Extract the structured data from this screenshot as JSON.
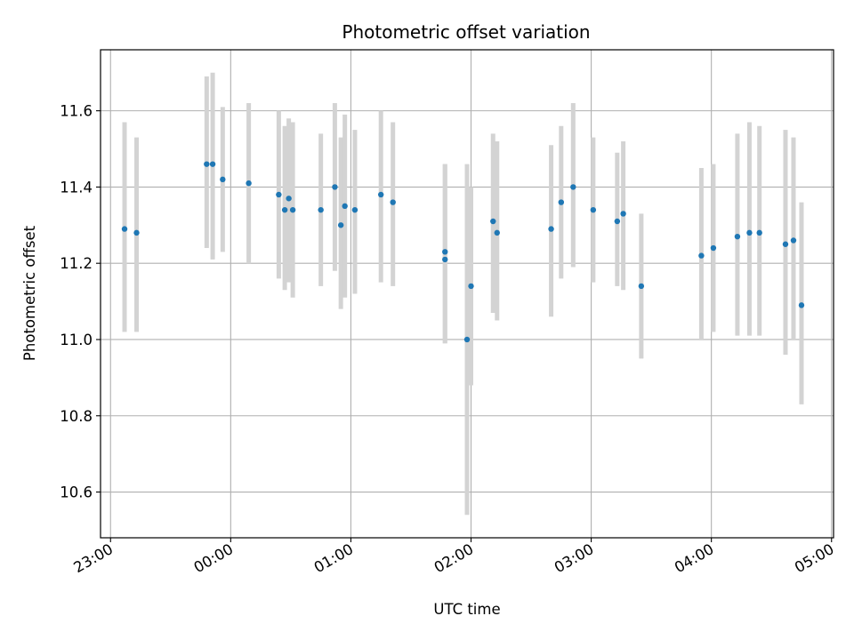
{
  "chart_data": {
    "type": "scatter",
    "title": "Photometric offset variation",
    "xlabel": "UTC time",
    "ylabel": "Photometric offset",
    "x_unit": "UTC time (HH:MM), 23:00 on first night through 05:00 next morning",
    "xlim": [
      "22:55",
      "05:01"
    ],
    "ylim": [
      10.48,
      11.76
    ],
    "xticks": [
      "23:00",
      "00:00",
      "01:00",
      "02:00",
      "03:00",
      "04:00",
      "05:00"
    ],
    "yticks": [
      "10.6",
      "10.8",
      "11.0",
      "11.2",
      "11.4",
      "11.6"
    ],
    "grid": true,
    "legend": "none",
    "colors": {
      "point": "#1f77b4",
      "errorbar": "#d3d3d3",
      "grid": "#b0b0b0"
    },
    "points": [
      {
        "t": "23:07",
        "y": 11.29,
        "lo": 11.02,
        "hi": 11.57
      },
      {
        "t": "23:13",
        "y": 11.28,
        "lo": 11.02,
        "hi": 11.53
      },
      {
        "t": "23:48",
        "y": 11.46,
        "lo": 11.24,
        "hi": 11.69
      },
      {
        "t": "23:51",
        "y": 11.46,
        "lo": 11.21,
        "hi": 11.7
      },
      {
        "t": "23:56",
        "y": 11.42,
        "lo": 11.23,
        "hi": 11.61
      },
      {
        "t": "00:09",
        "y": 11.41,
        "lo": 11.2,
        "hi": 11.62
      },
      {
        "t": "00:24",
        "y": 11.38,
        "lo": 11.16,
        "hi": 11.6
      },
      {
        "t": "00:27",
        "y": 11.34,
        "lo": 11.13,
        "hi": 11.56
      },
      {
        "t": "00:29",
        "y": 11.37,
        "lo": 11.15,
        "hi": 11.58
      },
      {
        "t": "00:31",
        "y": 11.34,
        "lo": 11.11,
        "hi": 11.57
      },
      {
        "t": "00:45",
        "y": 11.34,
        "lo": 11.14,
        "hi": 11.54
      },
      {
        "t": "00:52",
        "y": 11.4,
        "lo": 11.18,
        "hi": 11.62
      },
      {
        "t": "00:55",
        "y": 11.3,
        "lo": 11.08,
        "hi": 11.53
      },
      {
        "t": "00:57",
        "y": 11.35,
        "lo": 11.11,
        "hi": 11.59
      },
      {
        "t": "01:02",
        "y": 11.34,
        "lo": 11.12,
        "hi": 11.55
      },
      {
        "t": "01:15",
        "y": 11.38,
        "lo": 11.15,
        "hi": 11.6
      },
      {
        "t": "01:21",
        "y": 11.36,
        "lo": 11.14,
        "hi": 11.57
      },
      {
        "t": "01:47",
        "y": 11.23,
        "lo": 10.99,
        "hi": 11.46
      },
      {
        "t": "01:47",
        "y": 11.21,
        "lo": 10.99,
        "hi": 11.46
      },
      {
        "t": "01:58",
        "y": 11.0,
        "lo": 10.54,
        "hi": 11.46
      },
      {
        "t": "02:00",
        "y": 11.14,
        "lo": 10.88,
        "hi": 11.4
      },
      {
        "t": "02:11",
        "y": 11.31,
        "lo": 11.07,
        "hi": 11.54
      },
      {
        "t": "02:13",
        "y": 11.28,
        "lo": 11.05,
        "hi": 11.52
      },
      {
        "t": "02:40",
        "y": 11.29,
        "lo": 11.06,
        "hi": 11.51
      },
      {
        "t": "02:45",
        "y": 11.36,
        "lo": 11.16,
        "hi": 11.56
      },
      {
        "t": "02:51",
        "y": 11.4,
        "lo": 11.19,
        "hi": 11.62
      },
      {
        "t": "03:01",
        "y": 11.34,
        "lo": 11.15,
        "hi": 11.53
      },
      {
        "t": "03:13",
        "y": 11.31,
        "lo": 11.14,
        "hi": 11.49
      },
      {
        "t": "03:16",
        "y": 11.33,
        "lo": 11.13,
        "hi": 11.52
      },
      {
        "t": "03:25",
        "y": 11.14,
        "lo": 10.95,
        "hi": 11.33
      },
      {
        "t": "03:55",
        "y": 11.22,
        "lo": 11.0,
        "hi": 11.45
      },
      {
        "t": "04:01",
        "y": 11.24,
        "lo": 11.02,
        "hi": 11.46
      },
      {
        "t": "04:13",
        "y": 11.27,
        "lo": 11.01,
        "hi": 11.54
      },
      {
        "t": "04:19",
        "y": 11.28,
        "lo": 11.01,
        "hi": 11.57
      },
      {
        "t": "04:24",
        "y": 11.28,
        "lo": 11.01,
        "hi": 11.56
      },
      {
        "t": "04:37",
        "y": 11.25,
        "lo": 10.96,
        "hi": 11.55
      },
      {
        "t": "04:41",
        "y": 11.26,
        "lo": 11.0,
        "hi": 11.53
      },
      {
        "t": "04:45",
        "y": 11.09,
        "lo": 10.83,
        "hi": 11.36
      }
    ]
  }
}
